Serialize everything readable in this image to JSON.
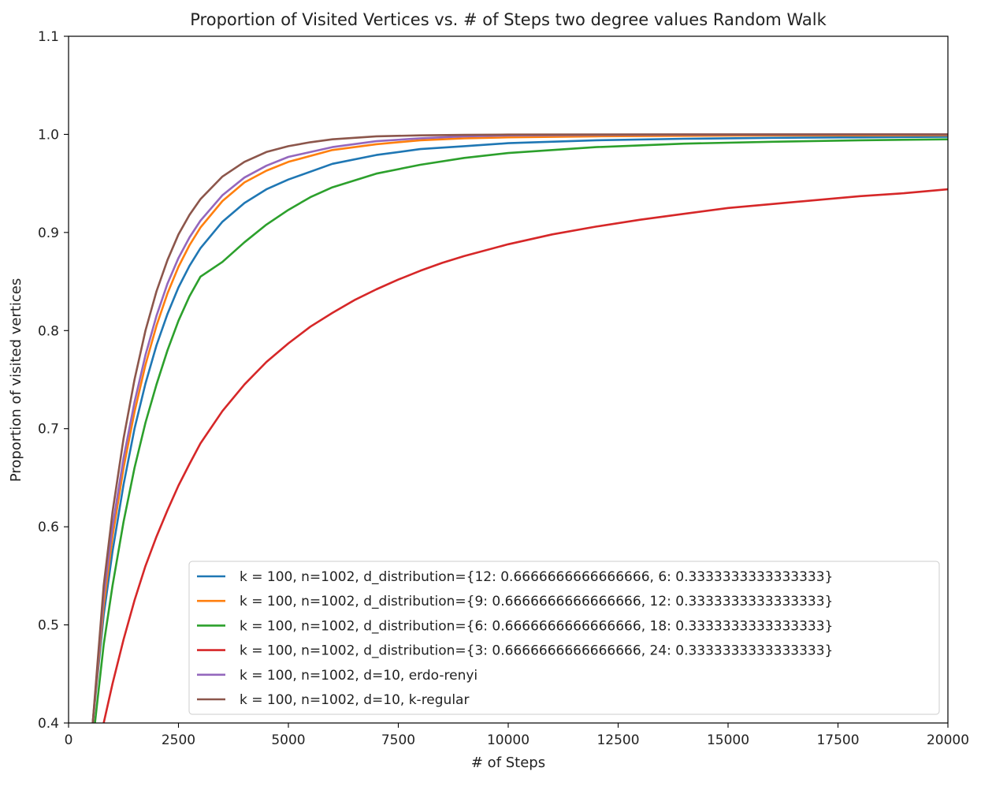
{
  "chart_data": {
    "type": "line",
    "title": "Proportion of Visited Vertices vs. # of Steps two degree values Random Walk",
    "xlabel": "# of Steps",
    "ylabel": "Proportion of visited vertices",
    "xlim": [
      0,
      20000
    ],
    "ylim": [
      0.4,
      1.1
    ],
    "xticks": [
      0,
      2500,
      5000,
      7500,
      10000,
      12500,
      15000,
      17500,
      20000
    ],
    "yticks": [
      0.4,
      0.5,
      0.6,
      0.7,
      0.8,
      0.9,
      1.0,
      1.1
    ],
    "xtick_labels": [
      "0",
      "2500",
      "5000",
      "7500",
      "10000",
      "12500",
      "15000",
      "17500",
      "20000"
    ],
    "ytick_labels": [
      "0.4",
      "0.5",
      "0.6",
      "0.7",
      "0.8",
      "0.9",
      "1.0",
      "1.1"
    ],
    "grid": false,
    "legend_position": "lower-right",
    "series": [
      {
        "name": "k = 100, n=1002, d_distribution={12: 0.6666666666666666, 6: 0.3333333333333333}",
        "color": "#1f77b4",
        "x": [
          550,
          800,
          1000,
          1250,
          1500,
          1750,
          2000,
          2250,
          2500,
          2750,
          3000,
          3500,
          4000,
          4500,
          5000,
          6000,
          7000,
          8000,
          9000,
          10000,
          12000,
          14000,
          16000,
          18000,
          20000
        ],
        "y": [
          0.4,
          0.51,
          0.575,
          0.643,
          0.7,
          0.746,
          0.785,
          0.817,
          0.844,
          0.866,
          0.884,
          0.911,
          0.93,
          0.944,
          0.954,
          0.97,
          0.979,
          0.985,
          0.988,
          0.991,
          0.994,
          0.9955,
          0.9965,
          0.997,
          0.9975
        ]
      },
      {
        "name": "k = 100, n=1002, d_distribution={9: 0.6666666666666666, 12: 0.3333333333333333}",
        "color": "#ff7f0e",
        "x": [
          550,
          800,
          1000,
          1250,
          1500,
          1750,
          2000,
          2250,
          2500,
          2750,
          3000,
          3500,
          4000,
          4500,
          5000,
          6000,
          7000,
          8000,
          9000,
          10000,
          12000,
          14000,
          16000,
          18000,
          20000
        ],
        "y": [
          0.4,
          0.52,
          0.59,
          0.66,
          0.717,
          0.765,
          0.805,
          0.838,
          0.865,
          0.887,
          0.905,
          0.932,
          0.951,
          0.963,
          0.972,
          0.984,
          0.99,
          0.994,
          0.996,
          0.997,
          0.998,
          0.9985,
          0.999,
          0.999,
          0.9992
        ]
      },
      {
        "name": "k = 100, n=1002, d_distribution={6: 0.6666666666666666, 18: 0.3333333333333333}",
        "color": "#2ca02c",
        "x": [
          600,
          800,
          1000,
          1250,
          1500,
          1750,
          2000,
          2250,
          2500,
          2750,
          3000,
          3500,
          4000,
          4500,
          5000,
          5500,
          6000,
          7000,
          8000,
          9000,
          10000,
          12000,
          14000,
          16000,
          18000,
          20000
        ],
        "y": [
          0.4,
          0.48,
          0.54,
          0.605,
          0.66,
          0.706,
          0.745,
          0.78,
          0.81,
          0.835,
          0.855,
          0.87,
          0.89,
          0.908,
          0.923,
          0.936,
          0.946,
          0.96,
          0.969,
          0.976,
          0.981,
          0.987,
          0.9905,
          0.9925,
          0.994,
          0.995
        ]
      },
      {
        "name": "k = 100, n=1002, d_distribution={3: 0.6666666666666666, 24: 0.3333333333333333}",
        "color": "#d62728",
        "x": [
          800,
          1000,
          1250,
          1500,
          1750,
          2000,
          2250,
          2500,
          2750,
          3000,
          3500,
          4000,
          4500,
          5000,
          5500,
          6000,
          6500,
          7000,
          7500,
          8000,
          8500,
          9000,
          10000,
          11000,
          12000,
          13000,
          14000,
          15000,
          16000,
          17000,
          18000,
          19000,
          20000
        ],
        "y": [
          0.4,
          0.44,
          0.485,
          0.525,
          0.56,
          0.59,
          0.617,
          0.642,
          0.664,
          0.685,
          0.718,
          0.745,
          0.768,
          0.787,
          0.804,
          0.818,
          0.831,
          0.842,
          0.852,
          0.861,
          0.869,
          0.876,
          0.888,
          0.898,
          0.906,
          0.913,
          0.919,
          0.925,
          0.929,
          0.933,
          0.937,
          0.94,
          0.944
        ]
      },
      {
        "name": "k = 100, n=1002, d=10, erdo-renyi",
        "color": "#9467bd",
        "x": [
          550,
          800,
          1000,
          1250,
          1500,
          1750,
          2000,
          2250,
          2500,
          2750,
          3000,
          3500,
          4000,
          4500,
          5000,
          6000,
          7000,
          8000,
          9000,
          10000,
          12000,
          14000,
          16000,
          18000,
          20000
        ],
        "y": [
          0.4,
          0.53,
          0.6,
          0.67,
          0.727,
          0.775,
          0.815,
          0.848,
          0.874,
          0.895,
          0.912,
          0.938,
          0.956,
          0.968,
          0.977,
          0.987,
          0.993,
          0.996,
          0.998,
          0.999,
          0.9995,
          0.9997,
          0.9998,
          0.9999,
          0.9999
        ]
      },
      {
        "name": "k = 100, n=1002, d=10, k-regular",
        "color": "#8c564b",
        "x": [
          550,
          800,
          1000,
          1250,
          1500,
          1750,
          2000,
          2250,
          2500,
          2750,
          3000,
          3500,
          4000,
          4500,
          5000,
          5500,
          6000,
          7000,
          8000,
          9000,
          10000,
          12000,
          14000,
          16000,
          18000,
          20000
        ],
        "y": [
          0.4,
          0.54,
          0.615,
          0.69,
          0.75,
          0.8,
          0.84,
          0.872,
          0.898,
          0.918,
          0.934,
          0.957,
          0.972,
          0.982,
          0.988,
          0.992,
          0.995,
          0.998,
          0.999,
          0.9995,
          0.9998,
          0.9999,
          1.0,
          1.0,
          1.0,
          1.0
        ]
      }
    ]
  }
}
